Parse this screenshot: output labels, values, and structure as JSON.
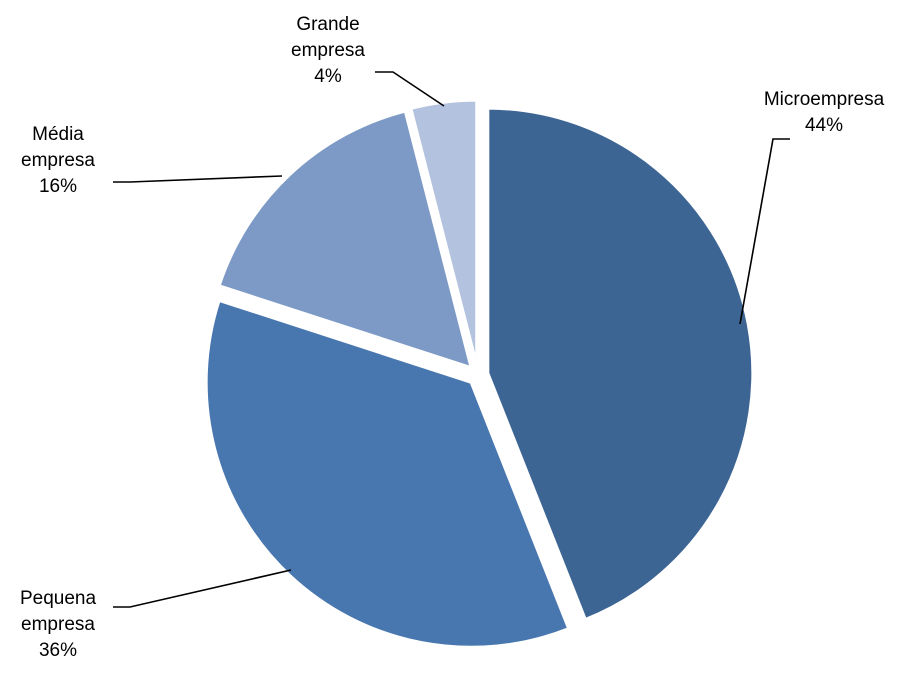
{
  "chart_data": {
    "type": "pie",
    "title": "",
    "series": [
      {
        "values": [
          44,
          36,
          16,
          4
        ]
      }
    ],
    "slices": [
      {
        "label": "Microempresa",
        "value": 44,
        "value_label": "44%",
        "color": "#3D6594"
      },
      {
        "label": "Pequena empresa",
        "value": 36,
        "value_label": "36%",
        "color": "#4876AF"
      },
      {
        "label": "Média empresa",
        "value": 16,
        "value_label": "16%",
        "color": "#7D9AC6"
      },
      {
        "label": "Grande empresa",
        "value": 4,
        "value_label": "4%",
        "color": "#B3C2DE"
      }
    ],
    "start_angle": "12 o'clock",
    "direction": "clockwise",
    "exploded": true,
    "legend": "none",
    "data_labels": "outside with leader lines"
  }
}
